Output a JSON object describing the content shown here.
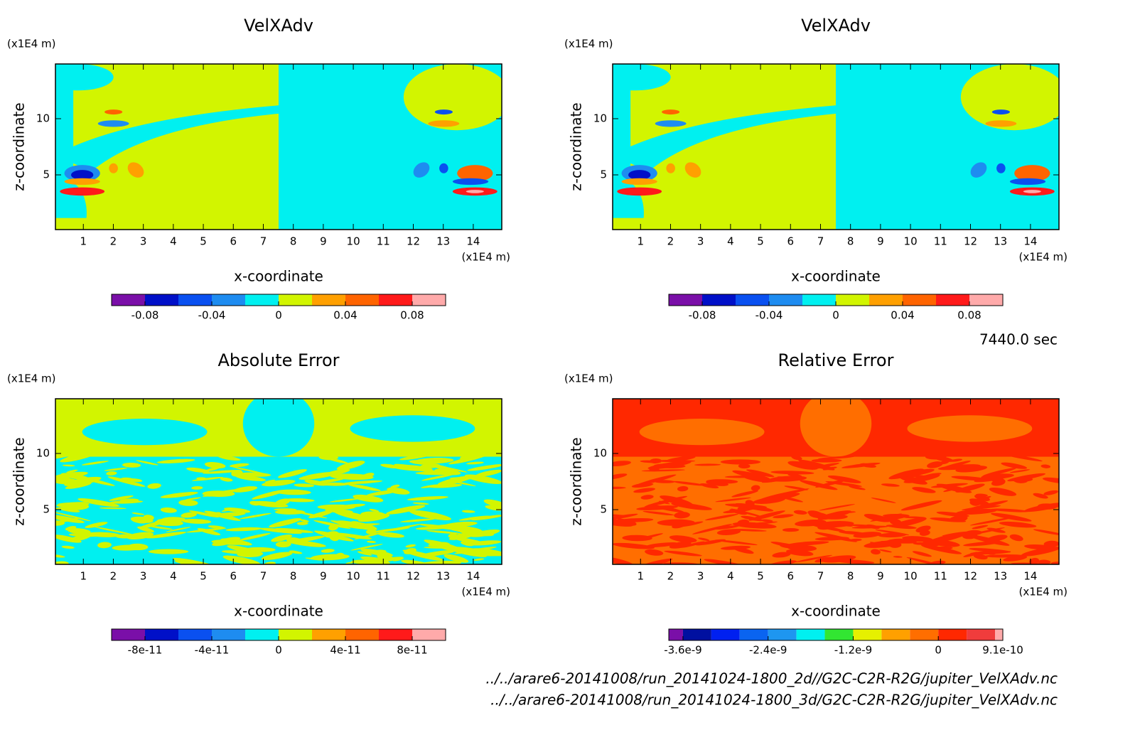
{
  "chart_data": [
    {
      "type": "contour",
      "title": "VelXAdv",
      "xlabel": "x-coordinate",
      "ylabel": "z-coordinate",
      "x_unit": "(x1E4 m)",
      "y_unit": "(x1E4 m)",
      "xlim": [
        0.07,
        14.95
      ],
      "ylim": [
        0.13,
        14.87
      ],
      "xticks": [
        1,
        2,
        3,
        4,
        5,
        6,
        7,
        8,
        9,
        10,
        11,
        12,
        13,
        14
      ],
      "yticks": [
        5,
        10
      ],
      "colorbar": {
        "levels": [
          -0.1,
          -0.08,
          -0.06,
          -0.04,
          -0.02,
          0,
          0.02,
          0.04,
          0.06,
          0.08,
          0.1
        ],
        "colors": [
          "#7a0fa8",
          "#0010c8",
          "#0a50f0",
          "#1e8cf0",
          "#00f0f0",
          "#d2f500",
          "#ffa000",
          "#ff6400",
          "#ff1a1a",
          "#ffaaaa"
        ],
        "ticks": [
          -0.08,
          -0.04,
          0,
          0.04,
          0.08
        ]
      }
    },
    {
      "type": "contour",
      "title": "VelXAdv",
      "xlabel": "x-coordinate",
      "ylabel": "z-coordinate",
      "x_unit": "(x1E4 m)",
      "y_unit": "(x1E4 m)",
      "xlim": [
        0.07,
        14.95
      ],
      "ylim": [
        0.13,
        14.87
      ],
      "xticks": [
        1,
        2,
        3,
        4,
        5,
        6,
        7,
        8,
        9,
        10,
        11,
        12,
        13,
        14
      ],
      "yticks": [
        5,
        10
      ],
      "colorbar": {
        "levels": [
          -0.1,
          -0.08,
          -0.06,
          -0.04,
          -0.02,
          0,
          0.02,
          0.04,
          0.06,
          0.08,
          0.1
        ],
        "colors": [
          "#7a0fa8",
          "#0010c8",
          "#0a50f0",
          "#1e8cf0",
          "#00f0f0",
          "#d2f500",
          "#ffa000",
          "#ff6400",
          "#ff1a1a",
          "#ffaaaa"
        ],
        "ticks": [
          -0.08,
          -0.04,
          0,
          0.04,
          0.08
        ]
      }
    },
    {
      "type": "contour",
      "title": "Absolute Error",
      "xlabel": "x-coordinate",
      "ylabel": "z-coordinate",
      "x_unit": "(x1E4 m)",
      "y_unit": "(x1E4 m)",
      "xlim": [
        0.07,
        14.95
      ],
      "ylim": [
        0.13,
        14.87
      ],
      "xticks": [
        1,
        2,
        3,
        4,
        5,
        6,
        7,
        8,
        9,
        10,
        11,
        12,
        13,
        14
      ],
      "yticks": [
        5,
        10
      ],
      "colorbar": {
        "levels": [
          -1e-10,
          -8e-11,
          -6e-11,
          -4e-11,
          -2e-11,
          0,
          2e-11,
          4e-11,
          6e-11,
          8e-11,
          1e-10
        ],
        "colors": [
          "#7a0fa8",
          "#0010c8",
          "#0a50f0",
          "#1e8cf0",
          "#00f0f0",
          "#d2f500",
          "#ffa000",
          "#ff6400",
          "#ff1a1a",
          "#ffaaaa"
        ],
        "ticks": [
          {
            "value": -8e-11,
            "label": "-8e-11"
          },
          {
            "value": -4e-11,
            "label": "-4e-11"
          },
          0,
          {
            "value": 4e-11,
            "label": "4e-11"
          },
          {
            "value": 8e-11,
            "label": "8e-11"
          }
        ]
      }
    },
    {
      "type": "contour",
      "title": "Relative Error",
      "xlabel": "x-coordinate",
      "ylabel": "z-coordinate",
      "x_unit": "(x1E4 m)",
      "y_unit": "(x1E4 m)",
      "xlim": [
        0.07,
        14.95
      ],
      "ylim": [
        0.13,
        14.87
      ],
      "xticks": [
        1,
        2,
        3,
        4,
        5,
        6,
        7,
        8,
        9,
        10,
        11,
        12,
        13,
        14
      ],
      "yticks": [
        5,
        10
      ],
      "colorbar": {
        "levels": [
          -3.8e-09,
          -3.6e-09,
          -3.2e-09,
          -2.8e-09,
          -2.4e-09,
          -2e-09,
          -1.6e-09,
          -1.2e-09,
          -8e-10,
          -4e-10,
          0,
          4e-10,
          8e-10,
          9.1e-10
        ],
        "colors": [
          "#7a0fa8",
          "#0010a0",
          "#0020f0",
          "#0a64f0",
          "#1e96f0",
          "#00f0f0",
          "#32e632",
          "#e6f000",
          "#ffa000",
          "#ff6e00",
          "#ff2800",
          "#f03c3c",
          "#ffaaaa"
        ],
        "ticks": [
          {
            "value": -3.6e-09,
            "label": "-3.6e-9"
          },
          {
            "value": -2.4e-09,
            "label": "-2.4e-9"
          },
          {
            "value": -1.2e-09,
            "label": "-1.2e-9"
          },
          0,
          {
            "value": 9.1e-10,
            "label": "9.1e-10"
          }
        ]
      }
    }
  ],
  "time_label": "7440.0 sec",
  "files": [
    "../../arare6-20141008/run_20141024-1800_2d//G2C-C2R-R2G/jupiter_VelXAdv.nc",
    "../../arare6-20141008/run_20141024-1800_3d/G2C-C2R-R2G/jupiter_VelXAdv.nc"
  ]
}
